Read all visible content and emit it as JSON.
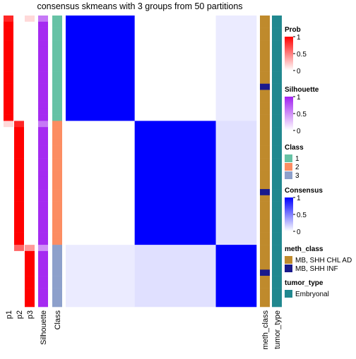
{
  "chart_data": {
    "type": "heatmap",
    "title": "consensus skmeans with 3 groups from 50 partitions",
    "annotation_labels": [
      "p1",
      "p2",
      "p3",
      "Silhouette",
      "Class"
    ],
    "right_labels": [
      "meth_class",
      "tumor_type"
    ],
    "samples": {
      "class": [
        1,
        1,
        1,
        1,
        1,
        1,
        1,
        1,
        1,
        1,
        1,
        1,
        1,
        1,
        1,
        1,
        1,
        2,
        2,
        2,
        2,
        2,
        2,
        2,
        2,
        2,
        2,
        2,
        2,
        2,
        2,
        2,
        2,
        2,
        2,
        2,
        2,
        3,
        3,
        3,
        3,
        3,
        3,
        3,
        3,
        3,
        3
      ],
      "p1": [
        0.85,
        1,
        1,
        1,
        1,
        1,
        1,
        1,
        1,
        1,
        1,
        1,
        1,
        1,
        1,
        1,
        1,
        0.15,
        0,
        0,
        0,
        0,
        0,
        0,
        0,
        0,
        0,
        0,
        0,
        0,
        0,
        0,
        0,
        0,
        0,
        0,
        0,
        0,
        0,
        0,
        0,
        0,
        0,
        0,
        0,
        0,
        0
      ],
      "p2": [
        0,
        0,
        0,
        0,
        0,
        0,
        0,
        0,
        0,
        0,
        0,
        0,
        0,
        0,
        0,
        0,
        0,
        0.85,
        1,
        1,
        1,
        1,
        1,
        1,
        1,
        1,
        1,
        1,
        1,
        1,
        1,
        1,
        1,
        1,
        1,
        1,
        1,
        0.6,
        0,
        0,
        0,
        0,
        0,
        0,
        0,
        0,
        0
      ],
      "p3": [
        0.15,
        0,
        0,
        0,
        0,
        0,
        0,
        0,
        0,
        0,
        0,
        0,
        0,
        0,
        0,
        0,
        0,
        0,
        0,
        0,
        0,
        0,
        0,
        0,
        0,
        0,
        0,
        0,
        0,
        0,
        0,
        0,
        0,
        0,
        0,
        0,
        0,
        0.4,
        1,
        1,
        1,
        1,
        1,
        1,
        1,
        1,
        1
      ],
      "silhouette": [
        0.6,
        0.95,
        0.95,
        0.95,
        0.95,
        0.95,
        0.95,
        0.95,
        0.95,
        0.95,
        0.95,
        0.95,
        0.95,
        0.95,
        0.95,
        0.95,
        0.95,
        0.6,
        0.95,
        0.95,
        0.95,
        0.95,
        0.95,
        0.95,
        0.95,
        0.95,
        0.95,
        0.95,
        0.95,
        0.95,
        0.95,
        0.95,
        0.95,
        0.95,
        0.95,
        0.95,
        0.95,
        0.5,
        0.95,
        0.95,
        0.95,
        0.95,
        0.95,
        0.95,
        0.95,
        0.95,
        0.95
      ],
      "meth_class": [
        0,
        0,
        0,
        0,
        0,
        0,
        0,
        0,
        0,
        0,
        0,
        1,
        0,
        0,
        0,
        0,
        0,
        0,
        0,
        0,
        0,
        0,
        0,
        0,
        0,
        0,
        0,
        0,
        1,
        0,
        0,
        0,
        0,
        0,
        0,
        0,
        0,
        0,
        0,
        0,
        0,
        1,
        0,
        0,
        0,
        0,
        0
      ],
      "tumor_type": [
        0,
        0,
        0,
        0,
        0,
        0,
        0,
        0,
        0,
        0,
        0,
        0,
        0,
        0,
        0,
        0,
        0,
        0,
        0,
        0,
        0,
        0,
        0,
        0,
        0,
        0,
        0,
        0,
        0,
        0,
        0,
        0,
        0,
        0,
        0,
        0,
        0,
        0,
        0,
        0,
        0,
        0,
        0,
        0,
        0,
        0,
        0
      ]
    },
    "consensus": [
      [
        1,
        0,
        0.08
      ],
      [
        0,
        1,
        0.12
      ],
      [
        0.08,
        0.12,
        1
      ]
    ],
    "colors": {
      "prob": "#ff0000",
      "silhouette": "#a020f0",
      "consensus": "#0000ff",
      "class": [
        "#66c2a5",
        "#fc8d62",
        "#8da0cb"
      ],
      "meth_class": [
        "#bf8a2c",
        "#1a1a8c"
      ],
      "tumor_type": [
        "#21888f"
      ]
    },
    "legends": {
      "prob": {
        "title": "Prob",
        "ticks": [
          1,
          0.5,
          0
        ]
      },
      "silhouette": {
        "title": "Silhouette",
        "ticks": [
          1,
          0.5,
          0
        ]
      },
      "class": {
        "title": "Class",
        "labels": [
          "1",
          "2",
          "3"
        ]
      },
      "consensus": {
        "title": "Consensus",
        "ticks": [
          1,
          0.5,
          0
        ]
      },
      "meth_class": {
        "title": "meth_class",
        "labels": [
          "MB, SHH CHL AD",
          "MB, SHH INF"
        ]
      },
      "tumor_type": {
        "title": "tumor_type",
        "labels": [
          "Embryonal"
        ]
      }
    }
  }
}
